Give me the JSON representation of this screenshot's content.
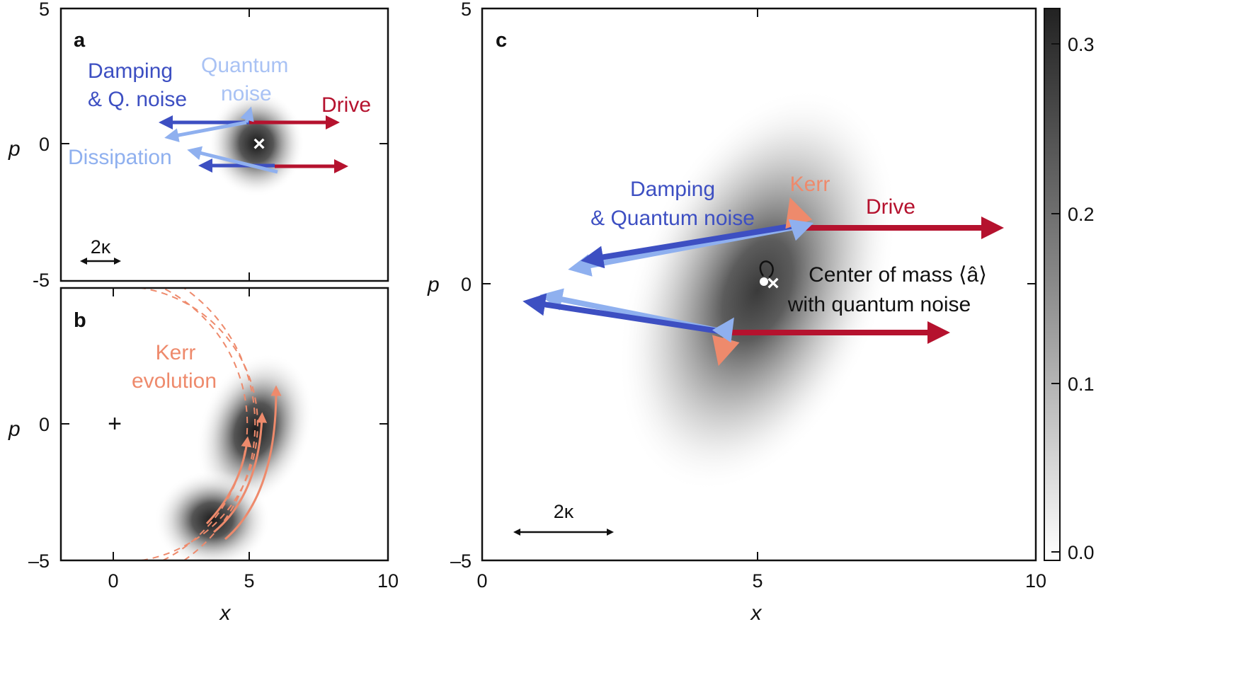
{
  "panels": {
    "a": {
      "label": "a",
      "xlabel": "",
      "ylabel": "p",
      "xticks": [],
      "yticks": [
        "5",
        "0",
        "-5"
      ],
      "center_marker": "×",
      "annotations": {
        "damping_line1": "Damping",
        "damping_line2": "& Q. noise",
        "quantum_line1": "Quantum",
        "quantum_line2": "noise",
        "drive": "Drive",
        "dissipation": "Dissipation"
      },
      "scale_bar": "2κ"
    },
    "b": {
      "label": "b",
      "xlabel": "x",
      "ylabel": "p",
      "xticks": [
        "0",
        "5",
        "10"
      ],
      "yticks": [
        "0",
        "–5"
      ],
      "origin_marker": "+",
      "annotations": {
        "kerr_line1": "Kerr",
        "kerr_line2": "evolution"
      }
    },
    "c": {
      "label": "c",
      "xlabel": "x",
      "ylabel": "p",
      "xticks": [
        "0",
        "5",
        "10"
      ],
      "yticks": [
        "5",
        "0",
        "–5"
      ],
      "annotations": {
        "damping_line1": "Damping",
        "damping_line2": "& Quantum noise",
        "kerr": "Kerr",
        "drive": "Drive",
        "com_line1": "Center of mass ⟨â⟩",
        "com_line2": "with quantum noise"
      },
      "center_marker": "×",
      "scale_bar": "2κ"
    }
  },
  "colorbar": {
    "ticks": [
      "0.3",
      "0.2",
      "0.1",
      "0.0"
    ],
    "range": [
      0,
      0.32
    ]
  },
  "colors": {
    "damping": "#3d4fc2",
    "quantum_noise": "#8fb0ef",
    "drive": "#b5122e",
    "kerr": "#ee8a6c",
    "axes": "#111111"
  }
}
